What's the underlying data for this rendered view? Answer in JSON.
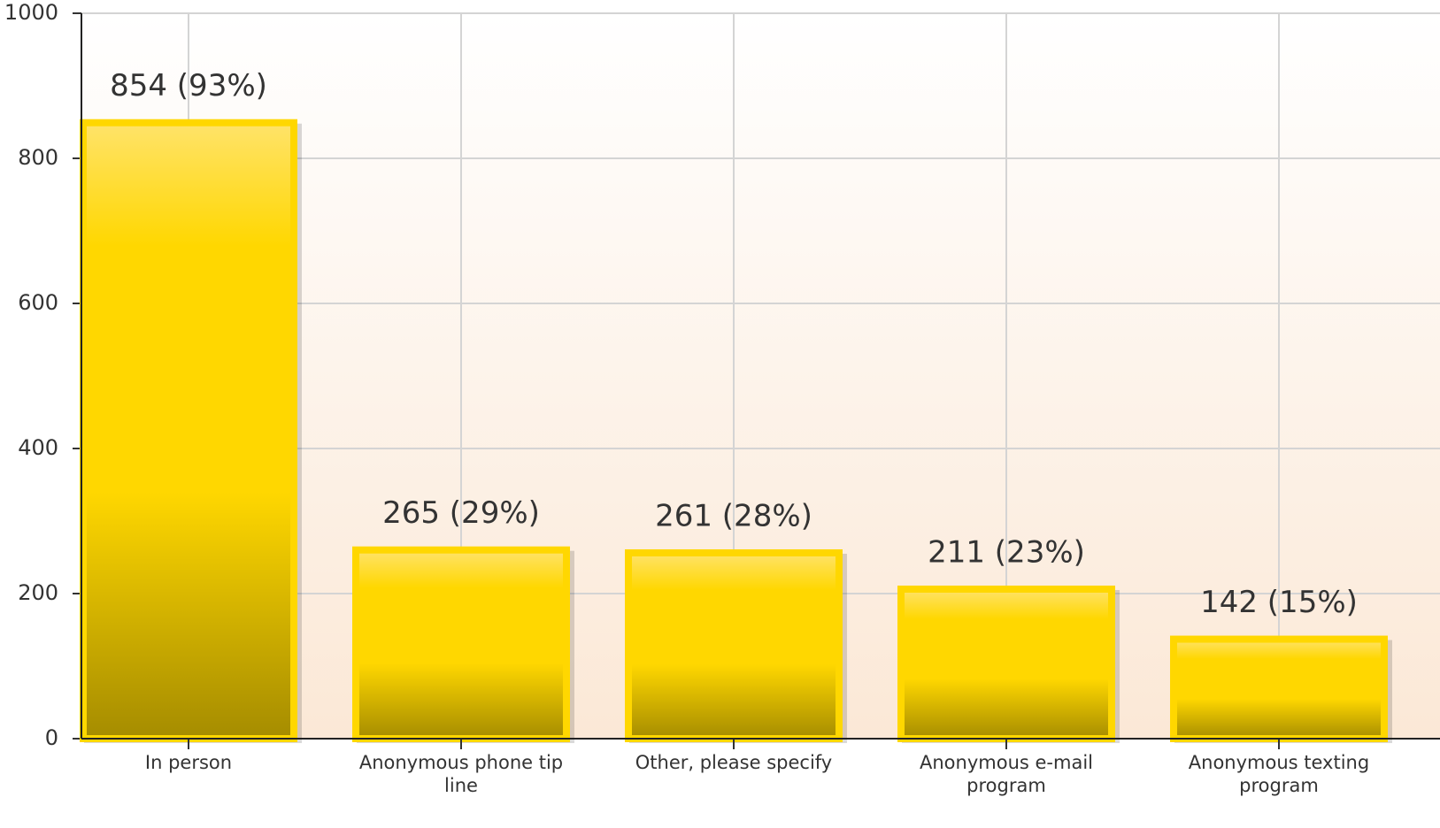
{
  "chart_data": {
    "type": "bar",
    "categories": [
      "In person",
      "Anonymous phone tip line",
      "Other, please specify",
      "Anonymous e-mail program",
      "Anonymous texting program"
    ],
    "values": [
      854,
      265,
      261,
      211,
      142
    ],
    "value_labels": [
      "854 (93%)",
      "265 (29%)",
      "261 (28%)",
      "211 (23%)",
      "142 (15%)"
    ],
    "color": "#ffd700",
    "ylim": [
      0,
      1000
    ],
    "yticks": [
      0,
      200,
      400,
      600,
      800,
      1000
    ],
    "grid": true
  }
}
